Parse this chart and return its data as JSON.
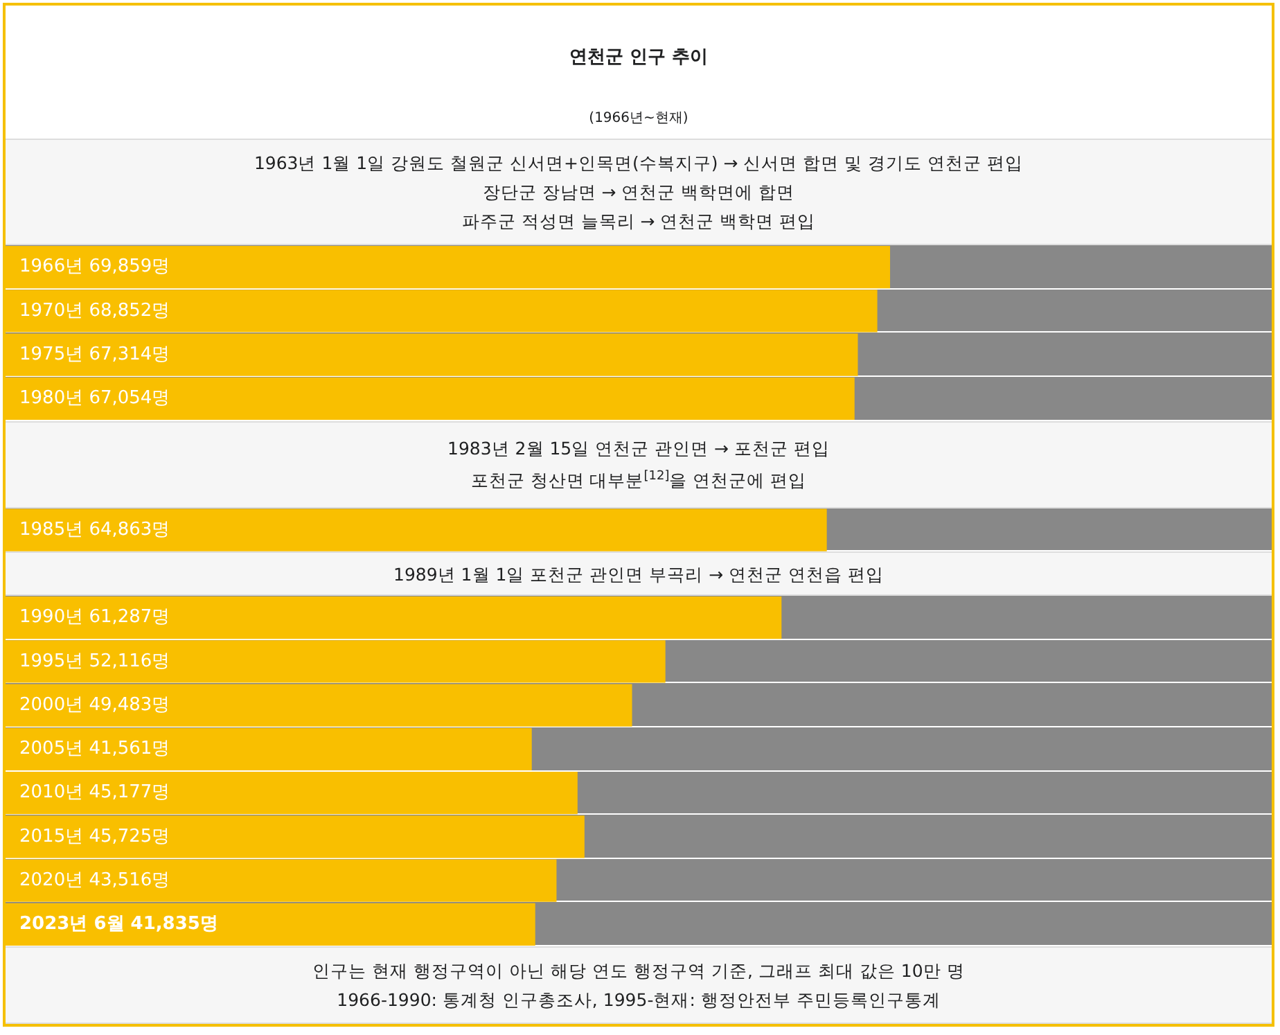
{
  "chart_data": {
    "type": "bar",
    "orientation": "horizontal",
    "title": "연천군 인구 추이",
    "subtitle": "(1966년~현재)",
    "categories": [
      "1966년",
      "1970년",
      "1975년",
      "1980년",
      null,
      null,
      "1985년",
      null,
      "1990년",
      "1995년",
      "2000년",
      "2005년",
      "2010년",
      "2015년",
      "2020년",
      "2023년 6월"
    ],
    "values": [
      69859,
      68852,
      67314,
      67054,
      null,
      null,
      64863,
      null,
      61287,
      52116,
      49483,
      41561,
      45177,
      45725,
      43516,
      41835
    ],
    "value_labels": [
      "69,859명",
      "68,852명",
      "67,314명",
      "67,054명",
      null,
      null,
      "64,863명",
      null,
      "61,287명",
      "52,116명",
      "49,483명",
      "41,561명",
      "45,177명",
      "45,725명",
      "43,516명",
      "41,835명"
    ],
    "color": "#f9bf00",
    "xlim": [
      0,
      100000
    ],
    "tick_labels": false,
    "legend": false,
    "annotations": [
      "1963년 1월 1일 강원도 철원군 신서면+인목면(수복지구) → 신서면 합면 및 경기도 연천군 편입\n장단군 장남면 → 연천군 백학면에 합면\n파주군 적성면 늘목리 → 연천군 백학면 편입",
      "1983년 2월 15일 연천군 관인면 → 포천군 편입\n포천군 청산면 대부분$^{[12]}$을 연천군에 편입",
      "1989년 1월 1일 포천군 관인면 부곡리 → 연천군 연천읍 편입",
      "인구는 현재 행정구역이 아닌 해당 연도 행정구역 기준, 그래프 최대 값은 10만 명",
      "1966-1990: 통계청 인구총조사, 1995-현재: 행정안전부 주민등록인구통계"
    ]
  }
}
